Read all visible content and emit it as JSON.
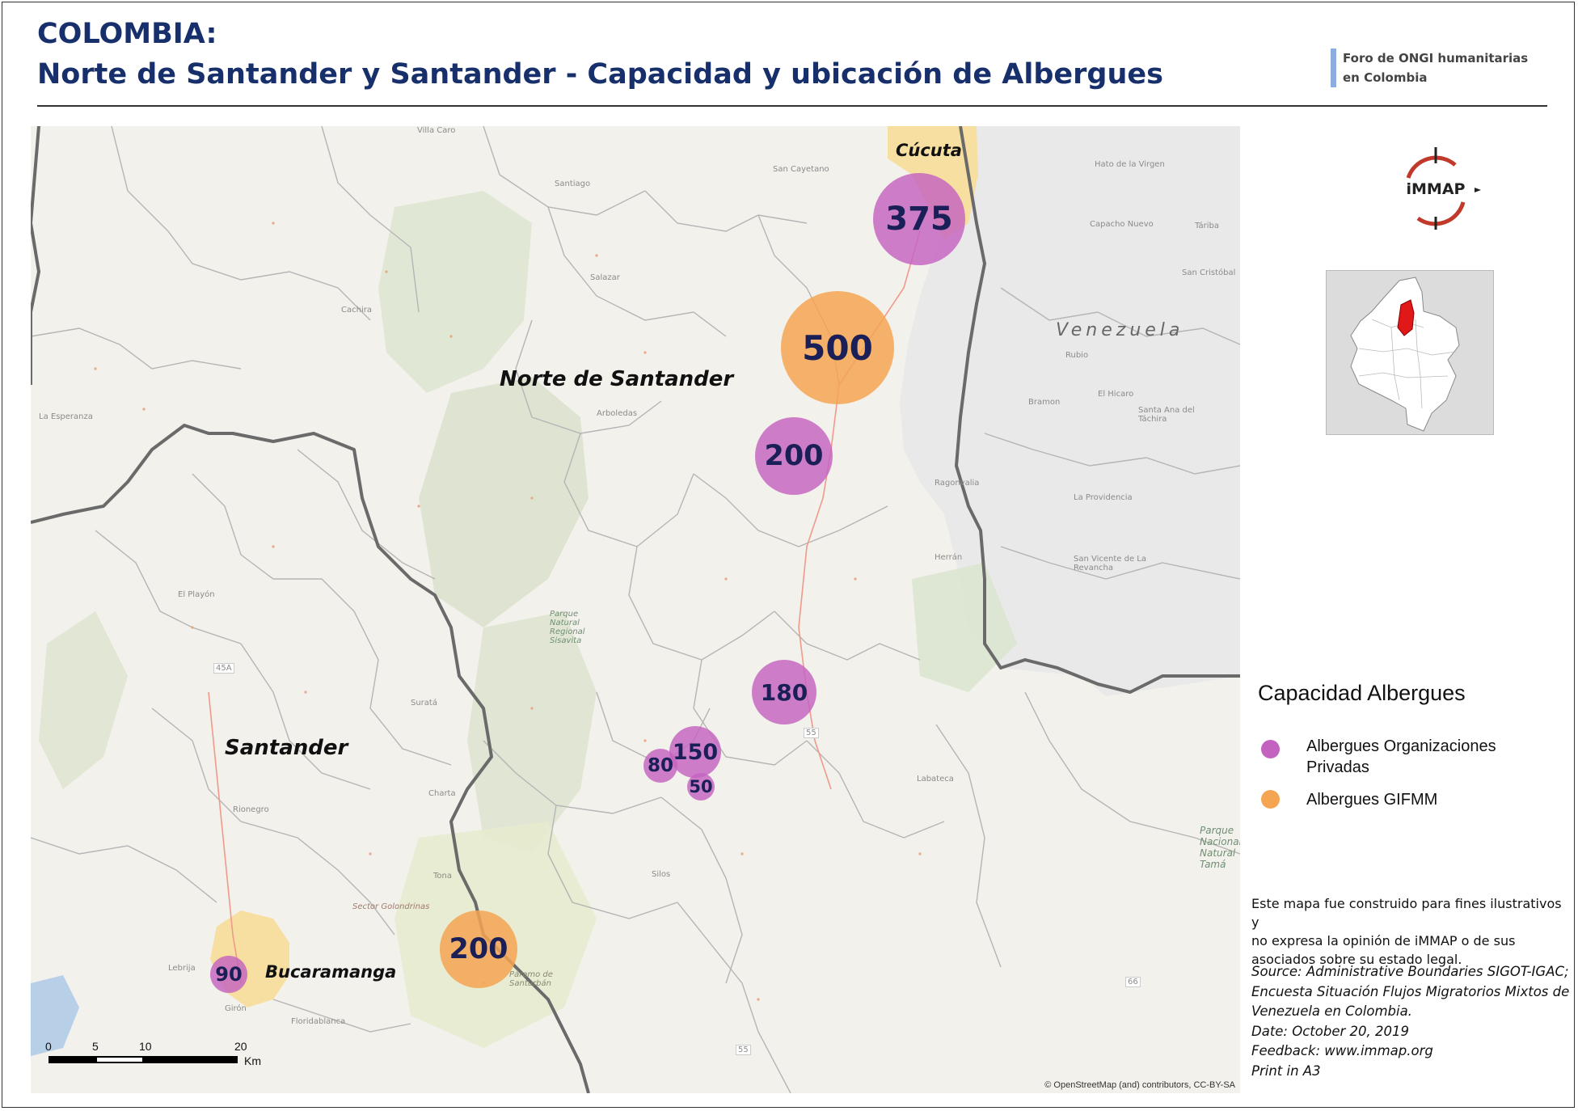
{
  "header": {
    "title_line1": "COLOMBIA:",
    "title_line2": "Norte de Santander y Santander - Capacidad y ubicación de Albergues",
    "forum_line1": "Foro de ONGI humanitarias",
    "forum_line2": "en Colombia"
  },
  "logo": {
    "text": "iMMAP"
  },
  "map": {
    "departments": [
      "Norte de Santander",
      "Santander"
    ],
    "cities": [
      "Cúcuta",
      "Bucaramanga"
    ],
    "country": "Venezuela",
    "place_names": [
      "Villa Caro",
      "Santiago",
      "San Cayetano",
      "Salazar",
      "Cachira",
      "La Esperanza",
      "Arboledas",
      "El Playón",
      "Rionegro",
      "Girón",
      "Floridablanca",
      "Suratá",
      "Charta",
      "Tona",
      "Silos",
      "Labateca",
      "Ragonvalia",
      "Herrán",
      "Rubio",
      "Bramon",
      "El Hicaro",
      "La Providencia",
      "San Vicente de La Revancha",
      "Santa Ana del Táchira",
      "San Cristóbal",
      "Táriba",
      "Capacho Nuevo",
      "Hato de la Virgen",
      "Parque Natural Regional Sisavita",
      "Páramo de Santurbán",
      "Sector Golondrinas",
      "Lebrija",
      "Parque Nacional Natural Tamá"
    ],
    "shelters": [
      {
        "value": "375",
        "type": "Albergues Organizaciones Privadas"
      },
      {
        "value": "500",
        "type": "Albergues GIFMM"
      },
      {
        "value": "200",
        "type": "Albergues Organizaciones Privadas"
      },
      {
        "value": "180",
        "type": "Albergues Organizaciones Privadas"
      },
      {
        "value": "150",
        "type": "Albergues Organizaciones Privadas"
      },
      {
        "value": "80",
        "type": "Albergues Organizaciones Privadas"
      },
      {
        "value": "50",
        "type": "Albergues Organizaciones Privadas"
      },
      {
        "value": "200",
        "type": "Albergues GIFMM"
      },
      {
        "value": "90",
        "type": "Albergues Organizaciones Privadas"
      }
    ],
    "scale": {
      "ticks": [
        "0",
        "5",
        "10",
        "20"
      ],
      "unit": "Km"
    },
    "attribution": "© OpenStreetMap (and) contributors, CC-BY-SA",
    "road_numbers": [
      "45A",
      "55",
      "55",
      "66"
    ]
  },
  "legend": {
    "title": "Capacidad Albergues",
    "items": [
      {
        "line1": "Albergues Organizaciones",
        "line2": "Privadas",
        "color": "#c463bf"
      },
      {
        "line1": "Albergues GIFMM",
        "line2": "",
        "color": "#f5a452"
      }
    ]
  },
  "disclaimer": {
    "line1": "Este mapa fue construido para fines ilustrativos y",
    "line2": "no expresa la opinión de iMMAP o de sus",
    "line3": "asociados sobre su estado legal."
  },
  "source": {
    "line1": "Source: Administrative Boundaries SIGOT-IGAC;",
    "line2": "Encuesta Situación Flujos Migratorios Mixtos de",
    "line3": "Venezuela en Colombia.",
    "line4": "Date: October 20, 2019",
    "line5": "Feedback: www.immap.org",
    "line6": "Print in A3"
  },
  "colors": {
    "private": "#c463bf",
    "gifmm": "#f5a452",
    "title": "#17306b"
  }
}
